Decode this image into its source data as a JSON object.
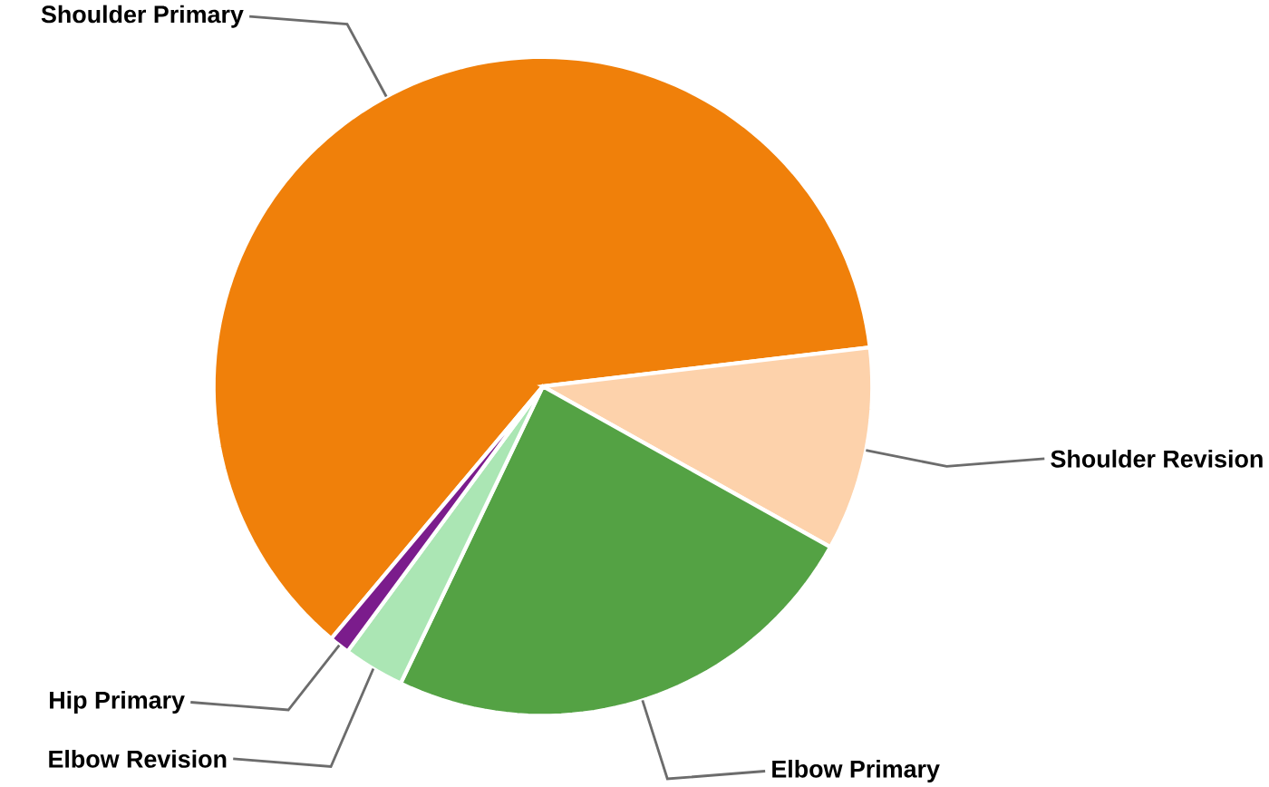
{
  "chart_data": {
    "type": "pie",
    "categories": [
      "Shoulder Primary",
      "Shoulder Revision",
      "Elbow Primary",
      "Elbow Revision",
      "Hip Primary"
    ],
    "values": [
      62,
      10,
      24,
      3,
      1
    ],
    "colors": [
      "#f0800a",
      "#fdd2ab",
      "#54a244",
      "#abe6b4",
      "#7b1c8c"
    ]
  }
}
